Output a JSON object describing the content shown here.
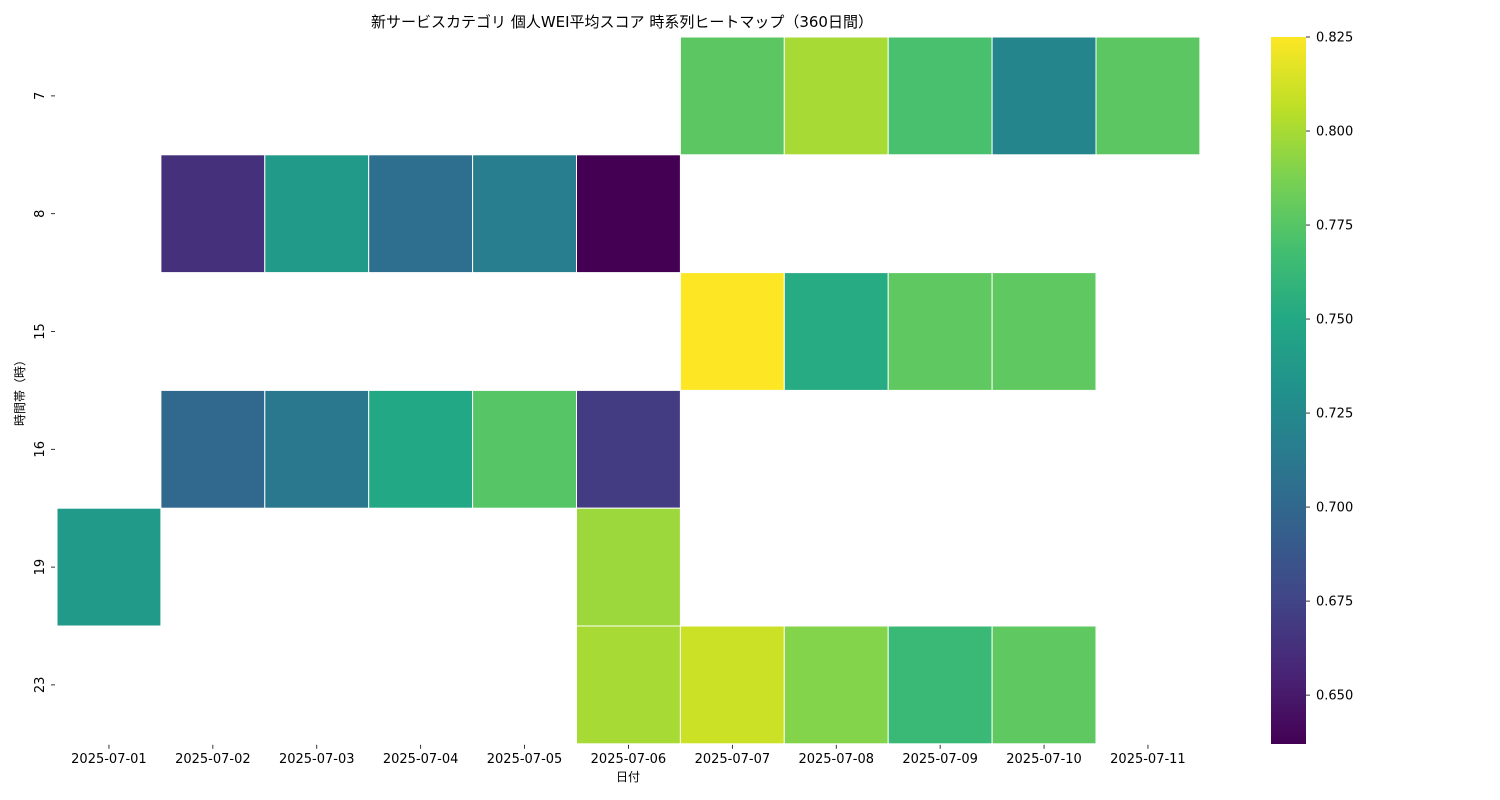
{
  "chart_data": {
    "type": "heatmap",
    "title": "新サービスカテゴリ 個人WEI平均スコア 時系列ヒートマップ（360日間）",
    "xlabel": "日付",
    "ylabel": "時間帯（時）",
    "x": [
      "2025-07-01",
      "2025-07-02",
      "2025-07-03",
      "2025-07-04",
      "2025-07-05",
      "2025-07-06",
      "2025-07-07",
      "2025-07-08",
      "2025-07-09",
      "2025-07-10",
      "2025-07-11"
    ],
    "y": [
      "7",
      "8",
      "15",
      "16",
      "19",
      "23"
    ],
    "values": [
      [
        null,
        null,
        null,
        null,
        null,
        null,
        0.777,
        0.8,
        0.77,
        0.722,
        0.777
      ],
      [
        null,
        0.663,
        0.738,
        0.705,
        0.716,
        0.637,
        null,
        null,
        null,
        null,
        null
      ],
      [
        null,
        null,
        null,
        null,
        null,
        null,
        0.825,
        0.752,
        0.778,
        0.778,
        null
      ],
      [
        null,
        0.7,
        0.712,
        0.75,
        0.775,
        0.67,
        null,
        null,
        null,
        null,
        null
      ],
      [
        0.738,
        null,
        null,
        null,
        null,
        0.797,
        null,
        null,
        null,
        null,
        null
      ],
      [
        null,
        null,
        null,
        null,
        null,
        0.8,
        0.81,
        0.79,
        0.763,
        0.778,
        null
      ]
    ],
    "colorbar": {
      "range": [
        0.637,
        0.825
      ],
      "ticks": [
        "0.650",
        "0.675",
        "0.700",
        "0.725",
        "0.750",
        "0.775",
        "0.800",
        "0.825"
      ],
      "colormap": "viridis"
    },
    "grid": false,
    "missing_color": "#ffffff",
    "cell_border_color": "#ffffff"
  }
}
